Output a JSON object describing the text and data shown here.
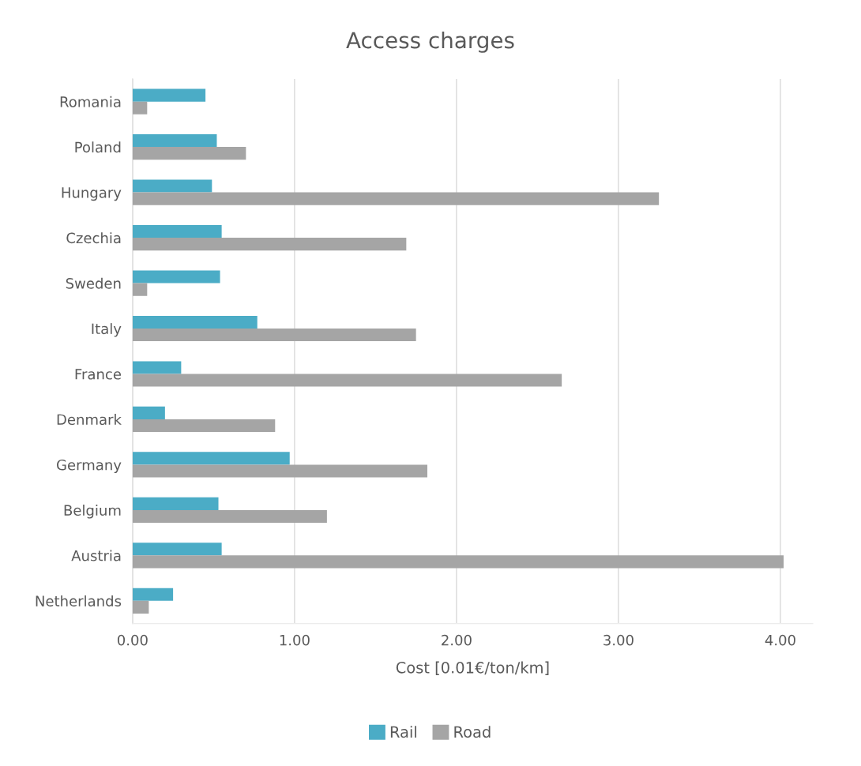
{
  "chart_data": {
    "type": "bar",
    "orientation": "horizontal",
    "title": "Access charges",
    "xlabel": "Cost [0.01€/ton/km]",
    "categories": [
      "Romania",
      "Poland",
      "Hungary",
      "Czechia",
      "Sweden",
      "Italy",
      "France",
      "Denmark",
      "Germany",
      "Belgium",
      "Austria",
      "Netherlands"
    ],
    "series": [
      {
        "name": "Rail",
        "color": "#4bacc6",
        "values": [
          0.45,
          0.52,
          0.49,
          0.55,
          0.54,
          0.77,
          0.3,
          0.2,
          0.97,
          0.53,
          0.55,
          0.25
        ]
      },
      {
        "name": "Road",
        "color": "#a5a5a5",
        "values": [
          0.09,
          0.7,
          3.25,
          1.69,
          0.09,
          1.75,
          2.65,
          0.88,
          1.82,
          1.2,
          4.02,
          0.1
        ]
      }
    ],
    "xlim": [
      0,
      4.2
    ],
    "xticks": [
      {
        "value": 0,
        "label": "0.00"
      },
      {
        "value": 1,
        "label": "1.00"
      },
      {
        "value": 2,
        "label": "2.00"
      },
      {
        "value": 3,
        "label": "3.00"
      },
      {
        "value": 4,
        "label": "4.00"
      }
    ],
    "grid": "x",
    "legend": "bottom"
  }
}
